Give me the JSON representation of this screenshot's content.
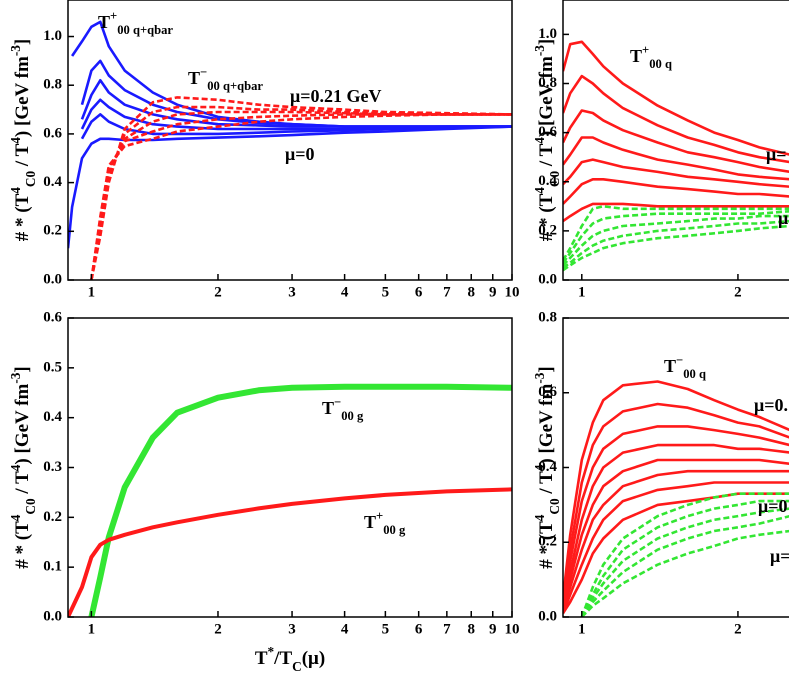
{
  "chart_data": [
    {
      "type": "line",
      "log_x": true,
      "ylabel": [
        "# * (T",
        "4",
        "C0",
        " / T",
        "4",
        ") [GeV fm",
        "-3",
        "]"
      ],
      "xlim": [
        0.88,
        10
      ],
      "ylim": [
        0,
        1.15
      ],
      "xticks": [
        1,
        2,
        3,
        4,
        5,
        6,
        7,
        8,
        9,
        10
      ],
      "yticks": [
        {
          "value": 0,
          "label": "0.0"
        },
        0.2,
        0.4,
        0.6,
        0.8,
        {
          "value": 1,
          "label": "1.0"
        }
      ],
      "x": [
        0.88,
        0.9,
        0.95,
        1.0,
        1.05,
        1.1,
        1.2,
        1.4,
        1.6,
        2,
        2.5,
        3,
        4,
        5,
        7,
        10
      ],
      "series": [
        {
          "color": "#1a1aff",
          "dashed": false,
          "values": [
            null,
            0.92,
            0.98,
            1.04,
            1.06,
            0.96,
            0.86,
            0.77,
            0.72,
            0.67,
            0.65,
            0.64,
            0.63,
            0.63,
            0.63,
            0.63
          ]
        },
        {
          "color": "#1a1aff",
          "dashed": false,
          "values": [
            null,
            null,
            0.72,
            0.86,
            0.9,
            0.84,
            0.78,
            0.72,
            0.69,
            0.66,
            0.645,
            0.64,
            0.63,
            0.63,
            0.63,
            0.63
          ]
        },
        {
          "color": "#1a1aff",
          "dashed": false,
          "values": [
            null,
            null,
            0.66,
            0.76,
            0.82,
            0.77,
            0.72,
            0.68,
            0.66,
            0.64,
            0.635,
            0.63,
            0.63,
            0.63,
            0.63,
            0.63
          ]
        },
        {
          "color": "#1a1aff",
          "dashed": false,
          "values": [
            null,
            null,
            0.62,
            0.7,
            0.74,
            0.71,
            0.67,
            0.64,
            0.63,
            0.62,
            0.62,
            0.62,
            0.62,
            0.625,
            0.63,
            0.63
          ]
        },
        {
          "color": "#1a1aff",
          "dashed": false,
          "values": [
            null,
            null,
            0.58,
            0.65,
            0.68,
            0.65,
            0.62,
            0.6,
            0.6,
            0.6,
            0.605,
            0.61,
            0.615,
            0.62,
            0.625,
            0.63
          ]
        },
        {
          "color": "#1a1aff",
          "dashed": false,
          "values": [
            0.13,
            0.3,
            0.5,
            0.56,
            0.58,
            0.58,
            0.575,
            0.575,
            0.58,
            0.585,
            0.59,
            0.595,
            0.605,
            0.61,
            0.62,
            0.63
          ]
        },
        {
          "color": "#ff1a1a",
          "dashed": true,
          "values": [
            null,
            null,
            null,
            0.0,
            0.18,
            0.4,
            0.62,
            0.73,
            0.75,
            0.74,
            0.72,
            0.71,
            0.7,
            0.69,
            0.685,
            0.68
          ]
        },
        {
          "color": "#ff1a1a",
          "dashed": true,
          "values": [
            null,
            null,
            null,
            0.0,
            0.2,
            0.42,
            0.6,
            0.69,
            0.71,
            0.71,
            0.7,
            0.7,
            0.69,
            0.685,
            0.68,
            0.68
          ]
        },
        {
          "color": "#ff1a1a",
          "dashed": true,
          "values": [
            null,
            null,
            null,
            0.0,
            0.22,
            0.44,
            0.58,
            0.65,
            0.68,
            0.69,
            0.69,
            0.69,
            0.685,
            0.68,
            0.68,
            0.68
          ]
        },
        {
          "color": "#ff1a1a",
          "dashed": true,
          "values": [
            null,
            null,
            null,
            0.0,
            0.24,
            0.46,
            0.57,
            0.61,
            0.64,
            0.66,
            0.67,
            0.675,
            0.68,
            0.68,
            0.68,
            0.68
          ]
        },
        {
          "color": "#ff1a1a",
          "dashed": true,
          "values": [
            null,
            null,
            null,
            0.0,
            0.26,
            0.47,
            0.55,
            0.58,
            0.61,
            0.63,
            0.65,
            0.66,
            0.67,
            0.675,
            0.68,
            0.68
          ]
        }
      ],
      "annotations": [
        [
          "T",
          "+",
          "00 q+qbar"
        ],
        [
          "T",
          "−",
          "00 q+qbar"
        ],
        [
          "μ=0.21 GeV"
        ],
        [
          "μ=0"
        ]
      ]
    },
    {
      "type": "line",
      "log_x": true,
      "ylabel": [
        "# * (T",
        "4",
        "C0",
        " / T",
        "4",
        ") [GeV fm",
        "-3",
        "]"
      ],
      "xlim": [
        0.92,
        2.52
      ],
      "ylim": [
        0,
        1.14
      ],
      "xticks": [
        1,
        2
      ],
      "yticks": [
        {
          "value": 0,
          "label": "0.0"
        },
        0.2,
        0.4,
        0.6,
        0.8,
        {
          "value": 1,
          "label": "1.0"
        }
      ],
      "x": [
        0.92,
        0.95,
        1.0,
        1.05,
        1.1,
        1.2,
        1.4,
        1.6,
        1.8,
        2.0,
        2.2,
        2.52
      ],
      "series": [
        {
          "color": "#ff1a1a",
          "dashed": false,
          "values": [
            0.85,
            0.96,
            0.97,
            0.92,
            0.87,
            0.8,
            0.71,
            0.65,
            0.6,
            0.57,
            0.54,
            0.51
          ]
        },
        {
          "color": "#ff1a1a",
          "dashed": false,
          "values": [
            0.68,
            0.76,
            0.83,
            0.8,
            0.76,
            0.7,
            0.63,
            0.58,
            0.55,
            0.52,
            0.5,
            0.48
          ]
        },
        {
          "color": "#ff1a1a",
          "dashed": false,
          "values": [
            0.56,
            0.62,
            0.69,
            0.68,
            0.65,
            0.61,
            0.56,
            0.52,
            0.5,
            0.48,
            0.46,
            0.44
          ]
        },
        {
          "color": "#ff1a1a",
          "dashed": false,
          "values": [
            0.47,
            0.51,
            0.58,
            0.58,
            0.56,
            0.53,
            0.49,
            0.47,
            0.45,
            0.43,
            0.42,
            0.41
          ]
        },
        {
          "color": "#ff1a1a",
          "dashed": false,
          "values": [
            0.39,
            0.42,
            0.48,
            0.49,
            0.48,
            0.46,
            0.44,
            0.42,
            0.41,
            0.4,
            0.39,
            0.38
          ]
        },
        {
          "color": "#ff1a1a",
          "dashed": false,
          "values": [
            0.31,
            0.34,
            0.39,
            0.41,
            0.41,
            0.4,
            0.38,
            0.37,
            0.36,
            0.35,
            0.35,
            0.34
          ]
        },
        {
          "color": "#ff1a1a",
          "dashed": false,
          "values": [
            0.24,
            0.26,
            0.29,
            0.31,
            0.31,
            0.31,
            0.3,
            0.3,
            0.3,
            0.3,
            0.3,
            0.3
          ]
        },
        {
          "color": "#33e633",
          "dashed": true,
          "values": [
            0.08,
            0.13,
            0.22,
            0.29,
            0.3,
            0.29,
            0.29,
            0.29,
            0.29,
            0.29,
            0.29,
            0.29
          ]
        },
        {
          "color": "#33e633",
          "dashed": true,
          "values": [
            0.07,
            0.11,
            0.18,
            0.23,
            0.25,
            0.26,
            0.27,
            0.27,
            0.27,
            0.27,
            0.27,
            0.28
          ]
        },
        {
          "color": "#33e633",
          "dashed": true,
          "values": [
            0.06,
            0.09,
            0.14,
            0.18,
            0.2,
            0.22,
            0.23,
            0.24,
            0.25,
            0.25,
            0.26,
            0.26
          ]
        },
        {
          "color": "#33e633",
          "dashed": true,
          "values": [
            0.05,
            0.07,
            0.11,
            0.14,
            0.16,
            0.18,
            0.2,
            0.21,
            0.22,
            0.23,
            0.23,
            0.24
          ]
        },
        {
          "color": "#33e633",
          "dashed": true,
          "values": [
            0.04,
            0.06,
            0.09,
            0.11,
            0.13,
            0.15,
            0.17,
            0.18,
            0.19,
            0.2,
            0.21,
            0.22
          ]
        }
      ],
      "annotations": [
        [
          "T",
          "+",
          "00 q"
        ],
        [
          "μ="
        ],
        [
          "μ"
        ]
      ]
    },
    {
      "type": "line",
      "log_x": true,
      "ylabel": [
        "# * (T",
        "4",
        "C0",
        " / T",
        "4",
        ") [GeV fm",
        "-3",
        "]"
      ],
      "xlabel": [
        "T",
        "*",
        "/T",
        "C",
        "(μ)"
      ],
      "xlim": [
        0.88,
        10
      ],
      "ylim": [
        0,
        0.6
      ],
      "xticks": [
        1,
        2,
        3,
        4,
        5,
        6,
        7,
        8,
        9,
        10
      ],
      "yticks": [
        {
          "value": 0,
          "label": "0.0"
        },
        0.1,
        0.2,
        0.3,
        0.4,
        0.5,
        0.6
      ],
      "x": [
        0.88,
        0.95,
        1.0,
        1.05,
        1.1,
        1.2,
        1.4,
        1.6,
        2,
        2.5,
        3,
        4,
        5,
        7,
        10
      ],
      "series": [
        {
          "color": "#33e633",
          "dashed": false,
          "thick": true,
          "values": [
            null,
            null,
            0.0,
            0.08,
            0.16,
            0.26,
            0.36,
            0.41,
            0.44,
            0.455,
            0.46,
            0.462,
            0.462,
            0.462,
            0.46
          ]
        },
        {
          "color": "#ff1a1a",
          "dashed": false,
          "thick": true,
          "values": [
            0.0,
            0.06,
            0.12,
            0.145,
            0.155,
            0.165,
            0.18,
            0.19,
            0.205,
            0.218,
            0.227,
            0.238,
            0.245,
            0.252,
            0.256
          ]
        }
      ],
      "annotations": [
        [
          "T",
          "−",
          "00 g"
        ],
        [
          "T",
          "+",
          "00 g"
        ]
      ]
    },
    {
      "type": "line",
      "log_x": true,
      "ylabel": [
        "# * (T",
        "4",
        "C0",
        " / T",
        "4",
        ") [GeV fm",
        "-3",
        "]"
      ],
      "xlim": [
        0.92,
        2.52
      ],
      "ylim": [
        0,
        0.8
      ],
      "xticks": [
        1,
        2
      ],
      "yticks": [
        {
          "value": 0,
          "label": "0.0"
        },
        0.2,
        0.4,
        0.6,
        0.8
      ],
      "x": [
        0.92,
        0.95,
        1.0,
        1.05,
        1.1,
        1.2,
        1.4,
        1.6,
        1.8,
        2.0,
        2.2,
        2.52
      ],
      "series": [
        {
          "color": "#ff1a1a",
          "dashed": false,
          "values": [
            0.05,
            0.22,
            0.42,
            0.52,
            0.58,
            0.62,
            0.63,
            0.61,
            0.58,
            0.555,
            0.535,
            0.5
          ]
        },
        {
          "color": "#ff1a1a",
          "dashed": false,
          "values": [
            0.04,
            0.18,
            0.36,
            0.46,
            0.51,
            0.55,
            0.57,
            0.56,
            0.54,
            0.52,
            0.51,
            0.48
          ]
        },
        {
          "color": "#ff1a1a",
          "dashed": false,
          "values": [
            0.03,
            0.15,
            0.31,
            0.4,
            0.45,
            0.49,
            0.51,
            0.51,
            0.5,
            0.49,
            0.48,
            0.46
          ]
        },
        {
          "color": "#ff1a1a",
          "dashed": false,
          "values": [
            0.03,
            0.12,
            0.26,
            0.35,
            0.4,
            0.44,
            0.46,
            0.46,
            0.46,
            0.45,
            0.45,
            0.44
          ]
        },
        {
          "color": "#ff1a1a",
          "dashed": false,
          "values": [
            0.02,
            0.1,
            0.22,
            0.3,
            0.35,
            0.39,
            0.42,
            0.42,
            0.42,
            0.42,
            0.42,
            0.41
          ]
        },
        {
          "color": "#ff1a1a",
          "dashed": false,
          "values": [
            0.02,
            0.08,
            0.18,
            0.26,
            0.3,
            0.35,
            0.38,
            0.39,
            0.39,
            0.39,
            0.39,
            0.39
          ]
        },
        {
          "color": "#ff1a1a",
          "dashed": false,
          "values": [
            0.01,
            0.06,
            0.14,
            0.21,
            0.26,
            0.31,
            0.34,
            0.35,
            0.36,
            0.36,
            0.36,
            0.36
          ]
        },
        {
          "color": "#ff1a1a",
          "dashed": false,
          "values": [
            0.01,
            0.04,
            0.1,
            0.17,
            0.21,
            0.26,
            0.3,
            0.31,
            0.32,
            0.33,
            0.33,
            0.33
          ]
        },
        {
          "color": "#33e633",
          "dashed": true,
          "values": [
            null,
            null,
            0.0,
            0.08,
            0.14,
            0.21,
            0.27,
            0.3,
            0.32,
            0.33,
            0.33,
            0.33
          ]
        },
        {
          "color": "#33e633",
          "dashed": true,
          "values": [
            null,
            null,
            0.0,
            0.06,
            0.11,
            0.18,
            0.24,
            0.27,
            0.29,
            0.3,
            0.31,
            0.31
          ]
        },
        {
          "color": "#33e633",
          "dashed": true,
          "values": [
            null,
            null,
            0.0,
            0.05,
            0.09,
            0.15,
            0.21,
            0.24,
            0.26,
            0.27,
            0.28,
            0.29
          ]
        },
        {
          "color": "#33e633",
          "dashed": true,
          "values": [
            null,
            null,
            0.0,
            0.04,
            0.07,
            0.12,
            0.18,
            0.21,
            0.23,
            0.24,
            0.25,
            0.27
          ]
        },
        {
          "color": "#33e633",
          "dashed": true,
          "values": [
            null,
            null,
            0.0,
            0.03,
            0.05,
            0.09,
            0.14,
            0.17,
            0.19,
            0.21,
            0.22,
            0.23
          ]
        }
      ],
      "annotations": [
        [
          "T",
          "−",
          "00 q"
        ],
        [
          "μ=0."
        ],
        [
          "μ=0"
        ],
        [
          "μ="
        ]
      ]
    }
  ]
}
